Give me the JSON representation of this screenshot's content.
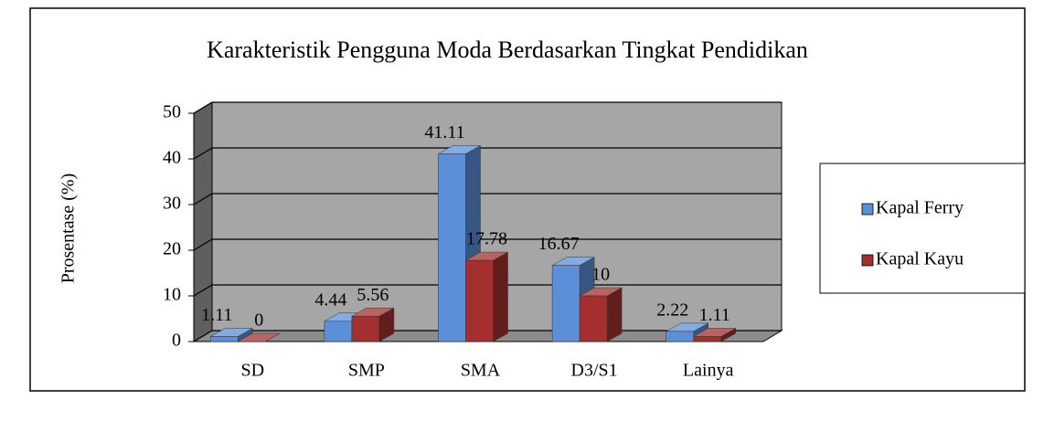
{
  "chart_data": {
    "type": "bar3d",
    "title": "Karakteristik Pengguna Moda Berdasarkan Tingkat Pendidikan",
    "y_label": "Prosentase (%)",
    "categories": [
      "SD",
      "SMP",
      "SMA",
      "D3/S1",
      "Lainya"
    ],
    "series": [
      {
        "name": "Kapal Ferry",
        "color": "#5b8fd8",
        "values": [
          1.11,
          4.44,
          41.11,
          16.67,
          2.22
        ]
      },
      {
        "name": "Kapal Kayu",
        "color": "#a3302e",
        "values": [
          0,
          5.56,
          17.78,
          10,
          1.11
        ]
      }
    ],
    "ylim": [
      0,
      50
    ],
    "yticks": [
      0,
      10,
      20,
      30,
      40,
      50
    ],
    "grid": true,
    "legend": "right"
  }
}
